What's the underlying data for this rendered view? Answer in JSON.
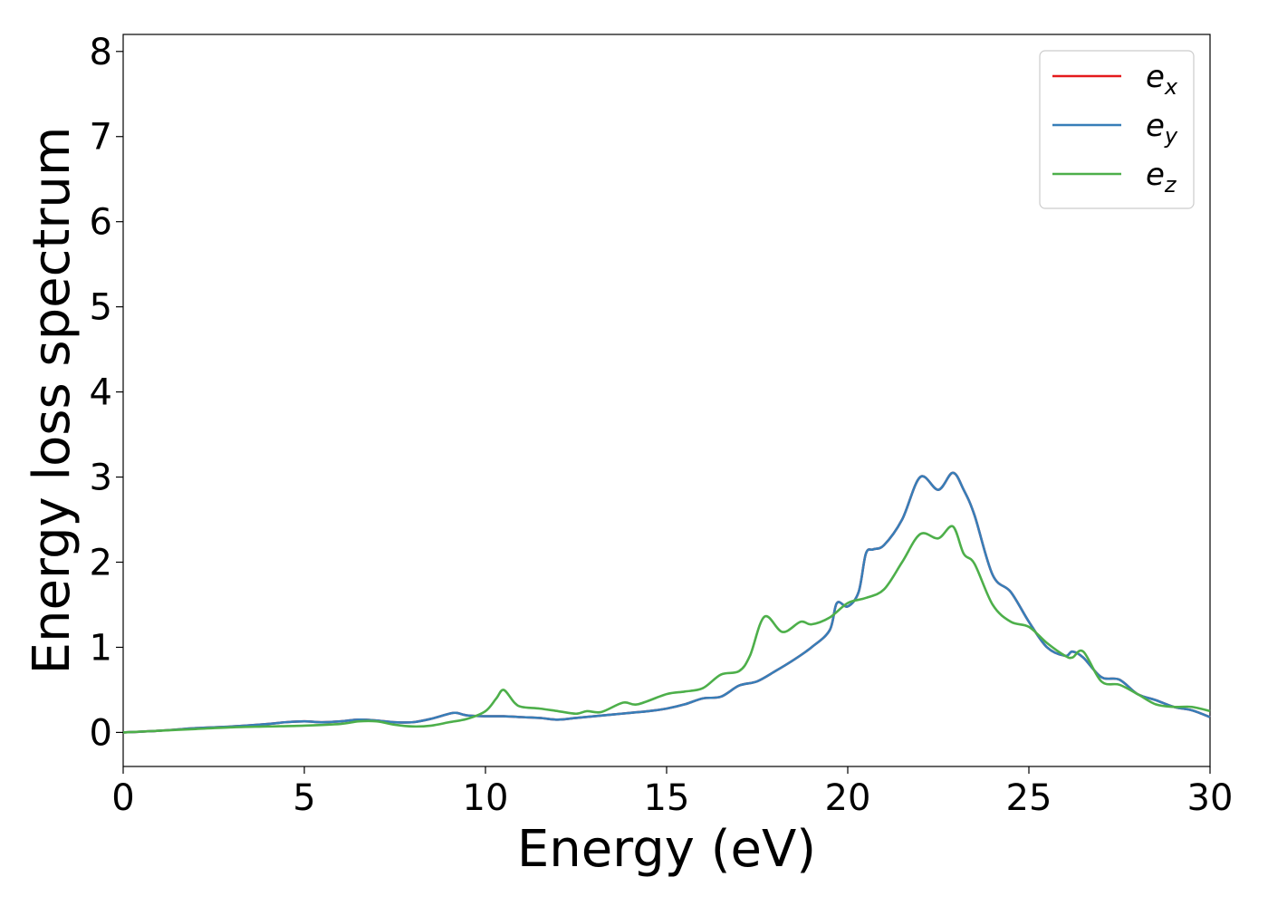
{
  "chart_data": {
    "type": "line",
    "title": "",
    "xlabel": "Energy (eV)",
    "ylabel": "Energy loss spectrum",
    "xlim": [
      0,
      30
    ],
    "ylim": [
      -0.4,
      8.2
    ],
    "xticks": [
      0,
      5,
      10,
      15,
      20,
      25,
      30
    ],
    "yticks": [
      0,
      1,
      2,
      3,
      4,
      5,
      6,
      7,
      8
    ],
    "grid": false,
    "legend_position": "top-right",
    "series": [
      {
        "name": "e_x",
        "legend_base": "e",
        "legend_sub": "x",
        "color": "#e41a1c",
        "x": [
          0,
          1,
          2,
          3,
          4,
          4.5,
          5,
          5.5,
          6,
          6.5,
          7,
          7.5,
          8,
          8.5,
          9,
          9.2,
          9.5,
          10,
          10.5,
          11,
          11.5,
          12,
          12.5,
          13,
          13.5,
          14,
          14.5,
          15,
          15.5,
          16,
          16.5,
          17,
          17.5,
          18,
          18.5,
          19,
          19.5,
          19.7,
          20,
          20.3,
          20.5,
          20.7,
          21,
          21.5,
          22,
          22.5,
          22.9,
          23.2,
          23.5,
          24,
          24.5,
          25,
          25.5,
          26,
          26.2,
          26.5,
          27,
          27.5,
          28,
          28.5,
          29,
          29.5,
          30
        ],
        "y": [
          0,
          0.02,
          0.05,
          0.07,
          0.1,
          0.12,
          0.13,
          0.12,
          0.13,
          0.15,
          0.14,
          0.12,
          0.12,
          0.16,
          0.22,
          0.23,
          0.2,
          0.19,
          0.19,
          0.18,
          0.17,
          0.15,
          0.17,
          0.19,
          0.21,
          0.23,
          0.25,
          0.28,
          0.33,
          0.4,
          0.42,
          0.55,
          0.6,
          0.72,
          0.85,
          1.0,
          1.2,
          1.52,
          1.48,
          1.65,
          2.1,
          2.15,
          2.2,
          2.5,
          3.0,
          2.85,
          3.05,
          2.85,
          2.55,
          1.85,
          1.65,
          1.3,
          1.0,
          0.9,
          0.95,
          0.88,
          0.65,
          0.62,
          0.45,
          0.38,
          0.3,
          0.26,
          0.18
        ]
      },
      {
        "name": "e_y",
        "legend_base": "e",
        "legend_sub": "y",
        "color": "#377eb8",
        "x": [
          0,
          1,
          2,
          3,
          4,
          4.5,
          5,
          5.5,
          6,
          6.5,
          7,
          7.5,
          8,
          8.5,
          9,
          9.2,
          9.5,
          10,
          10.5,
          11,
          11.5,
          12,
          12.5,
          13,
          13.5,
          14,
          14.5,
          15,
          15.5,
          16,
          16.5,
          17,
          17.5,
          18,
          18.5,
          19,
          19.5,
          19.7,
          20,
          20.3,
          20.5,
          20.7,
          21,
          21.5,
          22,
          22.5,
          22.9,
          23.2,
          23.5,
          24,
          24.5,
          25,
          25.5,
          26,
          26.2,
          26.5,
          27,
          27.5,
          28,
          28.5,
          29,
          29.5,
          30
        ],
        "y": [
          0,
          0.02,
          0.05,
          0.07,
          0.1,
          0.12,
          0.13,
          0.12,
          0.13,
          0.15,
          0.14,
          0.12,
          0.12,
          0.16,
          0.22,
          0.23,
          0.2,
          0.19,
          0.19,
          0.18,
          0.17,
          0.15,
          0.17,
          0.19,
          0.21,
          0.23,
          0.25,
          0.28,
          0.33,
          0.4,
          0.42,
          0.55,
          0.6,
          0.72,
          0.85,
          1.0,
          1.2,
          1.52,
          1.48,
          1.65,
          2.1,
          2.15,
          2.2,
          2.5,
          3.0,
          2.85,
          3.05,
          2.85,
          2.55,
          1.85,
          1.65,
          1.3,
          1.0,
          0.9,
          0.95,
          0.88,
          0.65,
          0.62,
          0.45,
          0.38,
          0.3,
          0.26,
          0.18
        ]
      },
      {
        "name": "e_z",
        "legend_base": "e",
        "legend_sub": "z",
        "color": "#4daf4a",
        "x": [
          0,
          1,
          2,
          3,
          4,
          5,
          6,
          6.5,
          7,
          7.5,
          8,
          8.5,
          9,
          9.5,
          10,
          10.3,
          10.5,
          10.8,
          11,
          11.5,
          12,
          12.5,
          12.8,
          13.2,
          13.8,
          14.2,
          15,
          15.5,
          16,
          16.5,
          17,
          17.3,
          17.7,
          18.2,
          18.7,
          19,
          19.5,
          20,
          20.5,
          21,
          21.5,
          22,
          22.5,
          22.9,
          23.2,
          23.5,
          24,
          24.5,
          25,
          25.5,
          26,
          26.2,
          26.5,
          27,
          27.5,
          28,
          28.5,
          29,
          29.5,
          30
        ],
        "y": [
          0,
          0.02,
          0.04,
          0.06,
          0.07,
          0.08,
          0.1,
          0.13,
          0.13,
          0.09,
          0.07,
          0.08,
          0.12,
          0.16,
          0.25,
          0.4,
          0.5,
          0.35,
          0.3,
          0.28,
          0.25,
          0.22,
          0.25,
          0.24,
          0.35,
          0.33,
          0.45,
          0.48,
          0.52,
          0.68,
          0.72,
          0.9,
          1.36,
          1.18,
          1.3,
          1.27,
          1.35,
          1.52,
          1.58,
          1.68,
          2.0,
          2.33,
          2.28,
          2.42,
          2.1,
          1.98,
          1.5,
          1.3,
          1.24,
          1.05,
          0.9,
          0.88,
          0.95,
          0.6,
          0.56,
          0.45,
          0.33,
          0.3,
          0.3,
          0.25
        ]
      }
    ]
  }
}
